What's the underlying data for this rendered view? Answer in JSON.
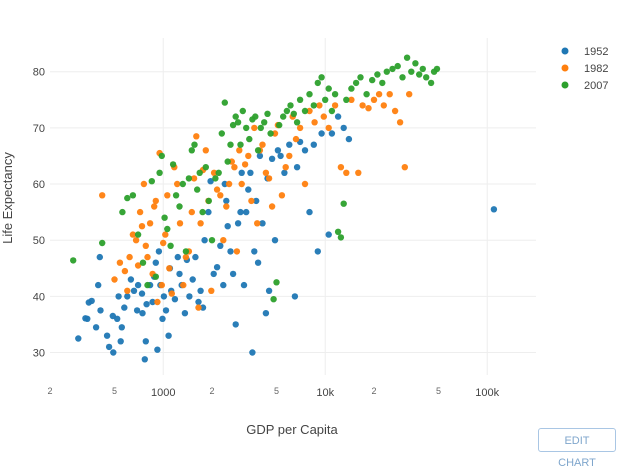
{
  "chart_data": {
    "type": "scatter",
    "title": "",
    "xlabel": "GDP per Capita",
    "ylabel": "Life Expectancy",
    "x_scale": "log",
    "xlim": [
      200,
      200000
    ],
    "ylim": [
      26,
      86
    ],
    "x_major_ticks": [
      {
        "value": 1000,
        "label": "1000"
      },
      {
        "value": 10000,
        "label": "10k"
      },
      {
        "value": 100000,
        "label": "100k"
      }
    ],
    "x_minor_ticks": [
      {
        "value": 200,
        "label": "2"
      },
      {
        "value": 500,
        "label": "5"
      },
      {
        "value": 2000,
        "label": "2"
      },
      {
        "value": 5000,
        "label": "5"
      },
      {
        "value": 20000,
        "label": "2"
      },
      {
        "value": 50000,
        "label": "5"
      }
    ],
    "y_ticks": [
      30,
      40,
      50,
      60,
      70,
      80
    ],
    "grid": true,
    "legend_position": "top-right",
    "series": [
      {
        "name": "1952",
        "color": "#1f77b4",
        "points": [
          [
            299,
            32.5
          ],
          [
            331,
            36.1
          ],
          [
            347,
            38.9
          ],
          [
            340,
            36
          ],
          [
            362,
            39.2
          ],
          [
            385,
            34.5
          ],
          [
            397,
            42
          ],
          [
            406,
            47
          ],
          [
            410,
            37.5
          ],
          [
            450,
            33
          ],
          [
            463,
            31
          ],
          [
            488,
            36.5
          ],
          [
            492,
            30
          ],
          [
            520,
            36
          ],
          [
            530,
            40
          ],
          [
            546,
            32
          ],
          [
            555,
            34.5
          ],
          [
            575,
            38
          ],
          [
            600,
            40
          ],
          [
            632,
            43
          ],
          [
            660,
            41
          ],
          [
            690,
            37.5
          ],
          [
            700,
            42
          ],
          [
            740,
            40.5
          ],
          [
            745,
            37
          ],
          [
            770,
            28.8
          ],
          [
            780,
            32
          ],
          [
            790,
            38.6
          ],
          [
            830,
            42
          ],
          [
            860,
            39
          ],
          [
            880,
            43.5
          ],
          [
            900,
            46
          ],
          [
            920,
            30.5
          ],
          [
            940,
            48
          ],
          [
            960,
            42
          ],
          [
            990,
            36
          ],
          [
            1010,
            40
          ],
          [
            1040,
            37.5
          ],
          [
            1080,
            33
          ],
          [
            1100,
            45
          ],
          [
            1120,
            41
          ],
          [
            1180,
            39.5
          ],
          [
            1230,
            47
          ],
          [
            1260,
            44
          ],
          [
            1300,
            42
          ],
          [
            1360,
            37
          ],
          [
            1400,
            46.5
          ],
          [
            1450,
            40
          ],
          [
            1520,
            43
          ],
          [
            1580,
            47
          ],
          [
            1650,
            39
          ],
          [
            1700,
            41
          ],
          [
            1760,
            38
          ],
          [
            1800,
            50
          ],
          [
            1900,
            55
          ],
          [
            1960,
            60.5
          ],
          [
            2050,
            44
          ],
          [
            2150,
            45.2
          ],
          [
            2250,
            49
          ],
          [
            2350,
            42
          ],
          [
            2400,
            60
          ],
          [
            2450,
            57
          ],
          [
            2500,
            52.5
          ],
          [
            2600,
            48
          ],
          [
            2700,
            44
          ],
          [
            2800,
            35
          ],
          [
            2900,
            53
          ],
          [
            3000,
            55
          ],
          [
            3050,
            62
          ],
          [
            3150,
            42
          ],
          [
            3250,
            55
          ],
          [
            3350,
            59
          ],
          [
            3450,
            62
          ],
          [
            3550,
            30
          ],
          [
            3650,
            48
          ],
          [
            3750,
            57
          ],
          [
            3850,
            46
          ],
          [
            3950,
            65
          ],
          [
            4100,
            53
          ],
          [
            4300,
            37
          ],
          [
            4400,
            61
          ],
          [
            4500,
            41
          ],
          [
            4700,
            64.5
          ],
          [
            4900,
            50
          ],
          [
            5100,
            66
          ],
          [
            5300,
            65
          ],
          [
            5600,
            62
          ],
          [
            6000,
            67
          ],
          [
            6500,
            40
          ],
          [
            6700,
            63
          ],
          [
            7000,
            67.5
          ],
          [
            7500,
            66
          ],
          [
            8000,
            55
          ],
          [
            8500,
            67
          ],
          [
            9000,
            48
          ],
          [
            9500,
            69
          ],
          [
            10500,
            51
          ],
          [
            11000,
            69
          ],
          [
            12000,
            72
          ],
          [
            13000,
            70
          ],
          [
            14000,
            68
          ],
          [
            110000,
            55.5
          ]
        ]
      },
      {
        "name": "1982",
        "color": "#ff7f0e",
        "points": [
          [
            420,
            58
          ],
          [
            500,
            43
          ],
          [
            540,
            46
          ],
          [
            580,
            44.5
          ],
          [
            600,
            41
          ],
          [
            620,
            47
          ],
          [
            650,
            51
          ],
          [
            680,
            50
          ],
          [
            700,
            45.5
          ],
          [
            720,
            55
          ],
          [
            740,
            52.5
          ],
          [
            760,
            60
          ],
          [
            780,
            49
          ],
          [
            800,
            47
          ],
          [
            830,
            53
          ],
          [
            860,
            44
          ],
          [
            880,
            56
          ],
          [
            900,
            57
          ],
          [
            920,
            39
          ],
          [
            950,
            65.5
          ],
          [
            980,
            42
          ],
          [
            1000,
            49.5
          ],
          [
            1030,
            51
          ],
          [
            1060,
            58
          ],
          [
            1090,
            45
          ],
          [
            1130,
            40.5
          ],
          [
            1170,
            63
          ],
          [
            1220,
            60
          ],
          [
            1270,
            53
          ],
          [
            1330,
            42
          ],
          [
            1380,
            47
          ],
          [
            1440,
            48
          ],
          [
            1500,
            55
          ],
          [
            1550,
            61
          ],
          [
            1600,
            68.5
          ],
          [
            1650,
            38
          ],
          [
            1700,
            53
          ],
          [
            1760,
            62.5
          ],
          [
            1830,
            66
          ],
          [
            1900,
            57
          ],
          [
            1980,
            41
          ],
          [
            2060,
            62
          ],
          [
            2150,
            59
          ],
          [
            2250,
            58
          ],
          [
            2350,
            50
          ],
          [
            2450,
            56
          ],
          [
            2550,
            60
          ],
          [
            2650,
            64
          ],
          [
            2750,
            63
          ],
          [
            2850,
            48
          ],
          [
            2950,
            66
          ],
          [
            3050,
            60
          ],
          [
            3200,
            63.5
          ],
          [
            3350,
            65
          ],
          [
            3500,
            57
          ],
          [
            3650,
            70
          ],
          [
            3800,
            53
          ],
          [
            3950,
            66
          ],
          [
            4100,
            67
          ],
          [
            4300,
            62
          ],
          [
            4500,
            61
          ],
          [
            4700,
            56
          ],
          [
            4900,
            69
          ],
          [
            5100,
            70.5
          ],
          [
            5400,
            58
          ],
          [
            5700,
            63
          ],
          [
            6000,
            65
          ],
          [
            6300,
            72
          ],
          [
            6600,
            68
          ],
          [
            7000,
            70
          ],
          [
            7500,
            60
          ],
          [
            8000,
            73
          ],
          [
            8600,
            71
          ],
          [
            9200,
            74
          ],
          [
            9800,
            72
          ],
          [
            10500,
            70
          ],
          [
            11500,
            74
          ],
          [
            12500,
            63
          ],
          [
            13500,
            62
          ],
          [
            14500,
            75
          ],
          [
            16000,
            62
          ],
          [
            17000,
            74
          ],
          [
            18500,
            73.5
          ],
          [
            20000,
            75
          ],
          [
            21500,
            76
          ],
          [
            23000,
            74
          ],
          [
            25000,
            76
          ],
          [
            27000,
            73
          ],
          [
            29000,
            71
          ],
          [
            31000,
            63
          ],
          [
            33000,
            76
          ]
        ]
      },
      {
        "name": "2007",
        "color": "#2ca02c",
        "points": [
          [
            278,
            46.4
          ],
          [
            420,
            49.5
          ],
          [
            560,
            55
          ],
          [
            600,
            57.5
          ],
          [
            650,
            58
          ],
          [
            700,
            51
          ],
          [
            750,
            46
          ],
          [
            800,
            42
          ],
          [
            850,
            60.5
          ],
          [
            900,
            43.5
          ],
          [
            950,
            62
          ],
          [
            980,
            65
          ],
          [
            1020,
            54
          ],
          [
            1060,
            52
          ],
          [
            1110,
            49
          ],
          [
            1150,
            63.5
          ],
          [
            1200,
            58
          ],
          [
            1260,
            56
          ],
          [
            1320,
            60
          ],
          [
            1380,
            48
          ],
          [
            1440,
            61
          ],
          [
            1500,
            66
          ],
          [
            1560,
            67
          ],
          [
            1620,
            59
          ],
          [
            1680,
            62
          ],
          [
            1750,
            55
          ],
          [
            1830,
            63
          ],
          [
            1910,
            57
          ],
          [
            2000,
            50
          ],
          [
            2100,
            61
          ],
          [
            2200,
            62
          ],
          [
            2300,
            69
          ],
          [
            2400,
            74.5
          ],
          [
            2500,
            64
          ],
          [
            2600,
            67
          ],
          [
            2700,
            70.5
          ],
          [
            2800,
            72
          ],
          [
            2900,
            71
          ],
          [
            3000,
            67
          ],
          [
            3100,
            73
          ],
          [
            3250,
            70
          ],
          [
            3400,
            68
          ],
          [
            3550,
            71.5
          ],
          [
            3700,
            72
          ],
          [
            3850,
            66
          ],
          [
            4000,
            70
          ],
          [
            4200,
            71
          ],
          [
            4400,
            72.5
          ],
          [
            4600,
            69
          ],
          [
            4800,
            39.5
          ],
          [
            5000,
            42.5
          ],
          [
            5200,
            70.5
          ],
          [
            5500,
            72
          ],
          [
            5800,
            73
          ],
          [
            6100,
            74
          ],
          [
            6400,
            72.5
          ],
          [
            6700,
            71
          ],
          [
            7000,
            75
          ],
          [
            7500,
            73
          ],
          [
            8000,
            76
          ],
          [
            8500,
            74
          ],
          [
            9000,
            78
          ],
          [
            9500,
            79
          ],
          [
            10000,
            75
          ],
          [
            10500,
            77
          ],
          [
            11000,
            73
          ],
          [
            11500,
            76
          ],
          [
            12000,
            51.5
          ],
          [
            12500,
            50.5
          ],
          [
            13000,
            56.5
          ],
          [
            13500,
            75
          ],
          [
            14500,
            77
          ],
          [
            15500,
            78
          ],
          [
            16500,
            79
          ],
          [
            18000,
            76
          ],
          [
            19500,
            78.5
          ],
          [
            21000,
            79.5
          ],
          [
            22500,
            78
          ],
          [
            24000,
            80
          ],
          [
            26000,
            80.5
          ],
          [
            28000,
            81
          ],
          [
            30000,
            79
          ],
          [
            32000,
            82.5
          ],
          [
            34000,
            80
          ],
          [
            36000,
            81.5
          ],
          [
            38000,
            79.5
          ],
          [
            40000,
            80.5
          ],
          [
            42000,
            79
          ],
          [
            45000,
            78
          ],
          [
            47000,
            80
          ],
          [
            49000,
            80.5
          ]
        ]
      }
    ]
  },
  "toolbar": {
    "edit_label": "EDIT CHART"
  }
}
